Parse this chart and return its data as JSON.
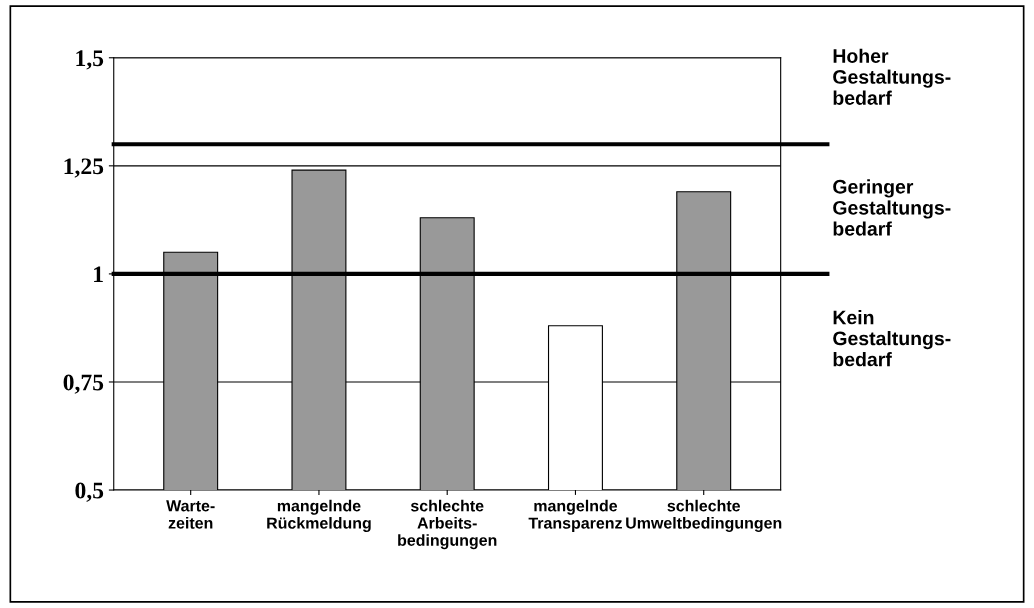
{
  "chart_data": {
    "type": "bar",
    "categories": [
      "Warte-\nzeiten",
      "mangelnde\nRückmeldung",
      "schlechte\nArbeits-\nbedingungen",
      "mangelnde\nTransparenz",
      "schlechte\nUmweltbedingungen"
    ],
    "values": [
      1.05,
      1.24,
      1.13,
      0.88,
      1.19
    ],
    "colors": [
      "#999999",
      "#999999",
      "#999999",
      "#ffffff",
      "#999999"
    ],
    "ylim": [
      0.5,
      1.5
    ],
    "yticks": [
      {
        "value": 0.5,
        "label": "0,5"
      },
      {
        "value": 0.75,
        "label": "0,75"
      },
      {
        "value": 1,
        "label": "1"
      },
      {
        "value": 1.25,
        "label": "1,25"
      },
      {
        "value": 1.5,
        "label": "1,5"
      }
    ],
    "grid": "y",
    "ref_lines": [
      {
        "axis": "y",
        "value": 1.3,
        "color": "#000000"
      },
      {
        "axis": "y",
        "value": 1.0,
        "color": "#000000"
      }
    ],
    "annotations": [
      "Hoher\nGestaltungs-\nbedarf",
      "Geringer\nGestaltungs-\nbedarf",
      "Kein\nGestaltungs-\nbedarf"
    ]
  }
}
